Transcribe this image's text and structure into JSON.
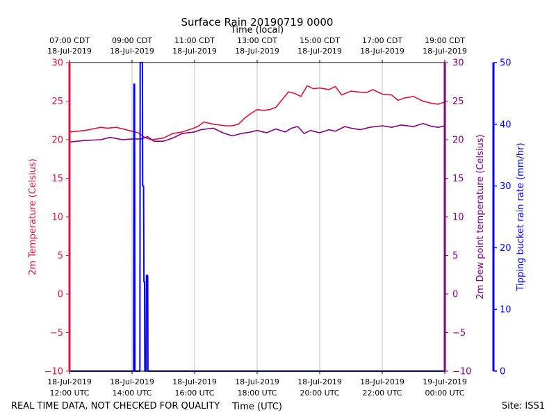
{
  "chart_data": {
    "type": "line",
    "title": "Surface Rain 20190719 0000",
    "top_xlabel": "Time (local)",
    "xlabel": "Time (UTC)",
    "footer_left": "REAL TIME DATA, NOT CHECKED FOR QUALITY",
    "footer_right": "Site: ISS1",
    "x_range_hours_utc": [
      12,
      24
    ],
    "bottom_ticks": [
      {
        "hour": 12,
        "date": "18-Jul-2019",
        "time": "12:00 UTC"
      },
      {
        "hour": 14,
        "date": "18-Jul-2019",
        "time": "14:00 UTC"
      },
      {
        "hour": 16,
        "date": "18-Jul-2019",
        "time": "16:00 UTC"
      },
      {
        "hour": 18,
        "date": "18-Jul-2019",
        "time": "18:00 UTC"
      },
      {
        "hour": 20,
        "date": "18-Jul-2019",
        "time": "20:00 UTC"
      },
      {
        "hour": 22,
        "date": "18-Jul-2019",
        "time": "22:00 UTC"
      },
      {
        "hour": 24,
        "date": "19-Jul-2019",
        "time": "00:00 UTC"
      }
    ],
    "top_ticks": [
      {
        "hour": 12,
        "time": "07:00 CDT",
        "date": "18-Jul-2019"
      },
      {
        "hour": 14,
        "time": "09:00 CDT",
        "date": "18-Jul-2019"
      },
      {
        "hour": 16,
        "time": "11:00 CDT",
        "date": "18-Jul-2019"
      },
      {
        "hour": 18,
        "time": "13:00 CDT",
        "date": "18-Jul-2019"
      },
      {
        "hour": 20,
        "time": "15:00 CDT",
        "date": "18-Jul-2019"
      },
      {
        "hour": 22,
        "time": "17:00 CDT",
        "date": "18-Jul-2019"
      },
      {
        "hour": 24,
        "time": "19:00 CDT",
        "date": "18-Jul-2019"
      }
    ],
    "axes": {
      "temperature": {
        "label": "2m Temperature (Celsius)",
        "range": [
          -10,
          30
        ],
        "ticks": [
          -10,
          -5,
          0,
          5,
          10,
          15,
          20,
          25,
          30
        ],
        "color": "#dc143c"
      },
      "dewpoint": {
        "label": "2m Dew point temperature (Celsius)",
        "range": [
          -10,
          30
        ],
        "ticks": [
          -10,
          -5,
          0,
          5,
          10,
          15,
          20,
          25,
          30
        ],
        "color": "#800080"
      },
      "rain": {
        "label": "Tipping bucket rain rate (mm/hr)",
        "range": [
          0,
          50
        ],
        "ticks": [
          0,
          10,
          20,
          30,
          40,
          50
        ],
        "color": "#0000ff"
      }
    },
    "series": [
      {
        "name": "2m Temperature",
        "axis": "temperature",
        "color": "#dc143c",
        "x": [
          12.0,
          12.5,
          13.0,
          13.2,
          13.5,
          13.8,
          14.0,
          14.2,
          14.4,
          14.6,
          15.0,
          15.3,
          15.6,
          15.9,
          16.1,
          16.3,
          16.6,
          17.0,
          17.2,
          17.4,
          17.6,
          17.8,
          18.0,
          18.2,
          18.4,
          18.6,
          18.8,
          19.0,
          19.2,
          19.4,
          19.6,
          19.8,
          20.0,
          20.3,
          20.5,
          20.7,
          21.0,
          21.2,
          21.5,
          21.7,
          22.0,
          22.3,
          22.5,
          22.7,
          23.0,
          23.3,
          23.6,
          23.8,
          24.0
        ],
        "y": [
          21.0,
          21.2,
          21.6,
          21.5,
          21.6,
          21.3,
          21.1,
          20.9,
          20.3,
          20.0,
          20.2,
          20.8,
          21.0,
          21.4,
          21.7,
          22.3,
          22.0,
          21.8,
          21.8,
          22.0,
          22.8,
          23.4,
          23.9,
          23.8,
          23.9,
          24.2,
          25.2,
          26.2,
          26.0,
          25.6,
          27.0,
          26.6,
          26.7,
          26.5,
          26.9,
          25.8,
          26.3,
          26.2,
          26.1,
          26.5,
          25.9,
          25.8,
          25.1,
          25.4,
          25.6,
          25.0,
          24.7,
          24.6,
          24.9
        ]
      },
      {
        "name": "2m Dew point temperature",
        "axis": "dewpoint",
        "color": "#800080",
        "x": [
          12.0,
          12.5,
          13.0,
          13.3,
          13.7,
          14.0,
          14.3,
          14.5,
          14.7,
          15.0,
          15.3,
          15.6,
          16.0,
          16.2,
          16.4,
          16.6,
          16.9,
          17.2,
          17.5,
          17.8,
          18.0,
          18.3,
          18.6,
          18.9,
          19.1,
          19.3,
          19.5,
          19.7,
          20.0,
          20.3,
          20.5,
          20.8,
          21.0,
          21.3,
          21.6,
          22.0,
          22.3,
          22.6,
          23.0,
          23.3,
          23.6,
          23.8,
          24.0
        ],
        "y": [
          19.7,
          19.9,
          20.0,
          20.3,
          20.0,
          20.1,
          20.1,
          20.4,
          19.8,
          19.8,
          20.2,
          20.8,
          21.0,
          21.3,
          21.4,
          21.5,
          20.9,
          20.5,
          20.8,
          21.0,
          21.2,
          20.9,
          21.4,
          21.0,
          21.5,
          21.7,
          20.8,
          21.2,
          20.9,
          21.3,
          21.1,
          21.7,
          21.5,
          21.3,
          21.6,
          21.8,
          21.6,
          21.9,
          21.7,
          22.1,
          21.7,
          21.6,
          21.8
        ]
      },
      {
        "name": "Tipping bucket rain rate",
        "axis": "rain",
        "color": "#0000ff",
        "x": [
          12.0,
          14.05,
          14.06,
          14.08,
          14.09,
          14.1,
          14.11,
          14.25,
          14.26,
          14.27,
          14.3,
          14.33,
          14.34,
          14.37,
          14.38,
          14.4,
          14.41,
          14.45,
          14.46,
          14.5,
          14.51,
          14.52,
          24.0
        ],
        "y": [
          0,
          0,
          46.5,
          46.5,
          0,
          0,
          0,
          0,
          50,
          50,
          50,
          50,
          30,
          30,
          14.5,
          14.5,
          0,
          0,
          15.5,
          15.5,
          0,
          0,
          0
        ]
      }
    ]
  }
}
